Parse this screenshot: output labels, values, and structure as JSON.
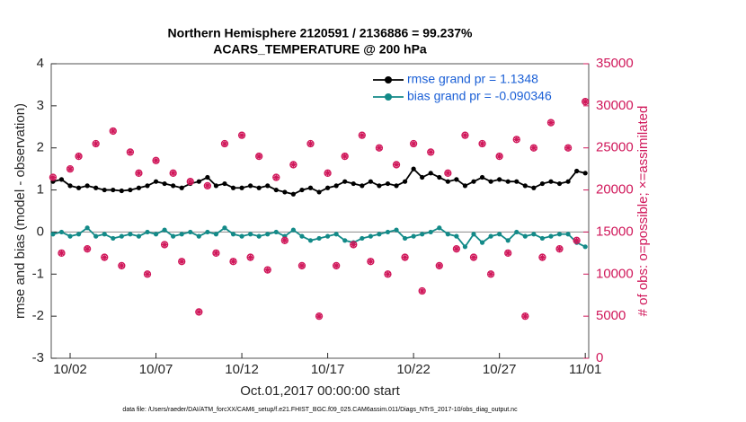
{
  "chart_data": {
    "type": "line",
    "title": "Northern Hemisphere 2120591 / 2136886 = 99.237%",
    "subtitle": "ACARS_TEMPERATURE @ 200 hPa",
    "xlabel": "Oct.01,2017 00:00:00 start",
    "ylabel": "rmse and bias (model - observation)",
    "y2label": "# of obs: o=possible; ×=assimilated",
    "footnote": "data file: /Users/raeder/DAI/ATM_forcXX/CAM6_setup/f.e21.FHIST_BGC.f09_025.CAM6assim.011/Diags_NTrS_2017-10/obs_diag_output.nc",
    "x": [
      0,
      0.5,
      1,
      1.5,
      2,
      2.5,
      3,
      3.5,
      4,
      4.5,
      5,
      5.5,
      6,
      6.5,
      7,
      7.5,
      8,
      8.5,
      9,
      9.5,
      10,
      10.5,
      11,
      11.5,
      12,
      12.5,
      13,
      13.5,
      14,
      14.5,
      15,
      15.5,
      16,
      16.5,
      17,
      17.5,
      18,
      18.5,
      19,
      19.5,
      20,
      20.5,
      21,
      21.5,
      22,
      22.5,
      23,
      23.5,
      24,
      24.5,
      25,
      25.5,
      26,
      26.5,
      27,
      27.5,
      28,
      28.5,
      29,
      29.5,
      30,
      30.5,
      31
    ],
    "xlim": [
      -0.1,
      31.2
    ],
    "xticks": [
      {
        "value": 1,
        "label": "10/02"
      },
      {
        "value": 6,
        "label": "10/07"
      },
      {
        "value": 11,
        "label": "10/12"
      },
      {
        "value": 16,
        "label": "10/17"
      },
      {
        "value": 21,
        "label": "10/22"
      },
      {
        "value": 26,
        "label": "10/27"
      },
      {
        "value": 31,
        "label": "11/01"
      }
    ],
    "ylim": [
      -3,
      4
    ],
    "yticks": [
      -3,
      -2,
      -1,
      0,
      1,
      2,
      3,
      4
    ],
    "y2lim": [
      0,
      35000
    ],
    "y2ticks": [
      0,
      5000,
      10000,
      15000,
      20000,
      25000,
      30000,
      35000
    ],
    "legend": "upper right",
    "series": [
      {
        "name": "rmse grand pr = 1.1348",
        "color": "#000000",
        "values": [
          1.2,
          1.25,
          1.1,
          1.05,
          1.1,
          1.05,
          1.0,
          1.0,
          0.98,
          1.0,
          1.05,
          1.1,
          1.2,
          1.15,
          1.1,
          1.05,
          1.15,
          1.2,
          1.3,
          1.1,
          1.15,
          1.05,
          1.05,
          1.1,
          1.05,
          1.1,
          1.0,
          0.95,
          0.9,
          1.0,
          1.05,
          0.95,
          1.05,
          1.1,
          1.2,
          1.15,
          1.1,
          1.2,
          1.1,
          1.15,
          1.1,
          1.2,
          1.5,
          1.3,
          1.4,
          1.3,
          1.2,
          1.25,
          1.1,
          1.2,
          1.3,
          1.2,
          1.25,
          1.2,
          1.2,
          1.1,
          1.05,
          1.15,
          1.2,
          1.15,
          1.2,
          1.45,
          1.4
        ]
      },
      {
        "name": "bias grand pr = -0.090346",
        "color": "#138a88",
        "values": [
          -0.05,
          0.0,
          -0.1,
          -0.05,
          0.1,
          -0.1,
          -0.05,
          -0.15,
          -0.1,
          -0.05,
          -0.1,
          0.0,
          -0.05,
          0.05,
          -0.1,
          -0.05,
          0.0,
          -0.1,
          0.0,
          -0.05,
          0.1,
          -0.05,
          -0.1,
          -0.05,
          -0.1,
          -0.05,
          0.0,
          -0.1,
          0.05,
          -0.1,
          -0.2,
          -0.15,
          -0.1,
          -0.05,
          -0.2,
          -0.25,
          -0.15,
          -0.1,
          -0.05,
          0.0,
          0.05,
          -0.15,
          -0.1,
          -0.05,
          0.0,
          0.1,
          -0.05,
          -0.1,
          -0.35,
          -0.05,
          -0.25,
          -0.1,
          -0.05,
          -0.2,
          0.0,
          -0.1,
          -0.05,
          -0.15,
          -0.1,
          -0.05,
          -0.05,
          -0.25,
          -0.35
        ]
      },
      {
        "color": "#d0175a",
        "axis": "y2",
        "values": [
          21500,
          12500,
          22500,
          24000,
          13000,
          25500,
          12000,
          27000,
          11000,
          24500,
          22000,
          10000,
          23500,
          13500,
          22000,
          11500,
          21000,
          5500,
          20500,
          12500,
          25500,
          11500,
          26500,
          12000,
          24000,
          10500,
          21500,
          14000,
          23000,
          11000,
          25500,
          5000,
          22000,
          11000,
          24000,
          13500,
          26500,
          11500,
          25000,
          10000,
          23000,
          12000,
          25500,
          8000,
          24500,
          11000,
          22000,
          13000,
          26500,
          12000,
          25500,
          10000,
          24000,
          12500,
          26000,
          5000,
          25000,
          12000,
          28000,
          13000,
          25000,
          14000,
          30500
        ]
      }
    ]
  }
}
